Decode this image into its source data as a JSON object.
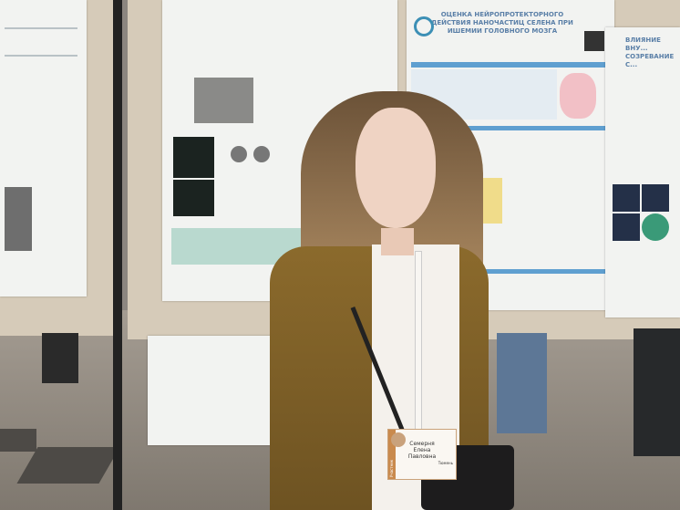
{
  "posters": {
    "center_title": "ОЦЕНКА НЕЙРОПРОТЕКТОРНОГО ДЕЙСТВИЯ НАНОЧАСТИЦ СЕЛЕНА ПРИ ИШЕМИИ ГОЛОВНОГО МОЗГА",
    "right_title": "ВЛИЯНИЕ ВНУ... СОЗРЕВАНИЕ С..."
  },
  "badge": {
    "name_line1": "Семерня",
    "name_line2": "Елена",
    "name_line3": "Павловна",
    "role": "Участник",
    "city": "Тюмень"
  },
  "colors": {
    "coat": "#8b6a2c",
    "poster_accent": "#5f9fd0",
    "badge_border": "#caa37a"
  }
}
